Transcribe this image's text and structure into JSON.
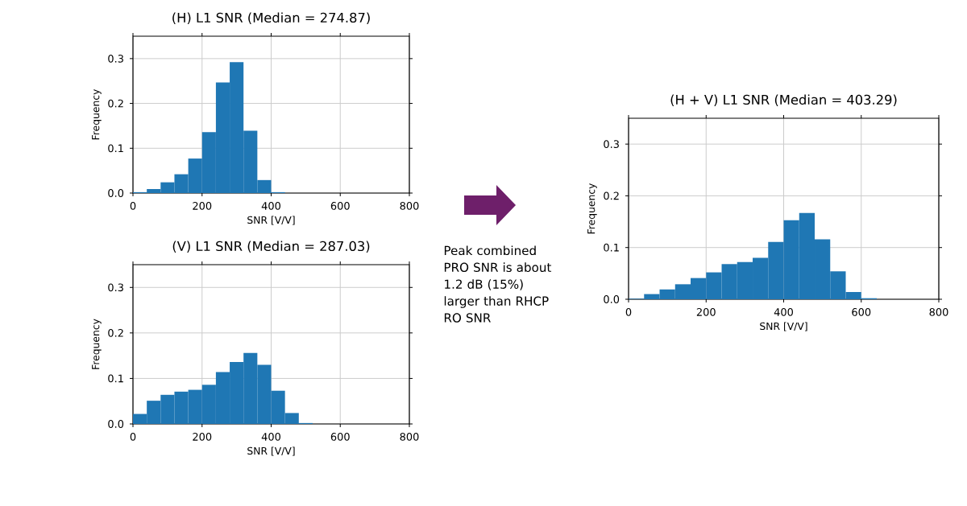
{
  "chart_data": [
    {
      "type": "histogram",
      "title": "(H) L1 SNR (Median = 274.87)",
      "xlabel": "SNR [V/V]",
      "ylabel": "Frequency",
      "bins": [
        0,
        40,
        80,
        120,
        160,
        200,
        240,
        280,
        320,
        360,
        400,
        440
      ],
      "values": [
        0.002,
        0.009,
        0.024,
        0.042,
        0.077,
        0.136,
        0.247,
        0.292,
        0.139,
        0.029,
        0.002
      ],
      "color": "#1f77b4",
      "xlim": [
        0,
        800
      ],
      "ylim": [
        0,
        0.35
      ],
      "xticks": [
        0,
        200,
        400,
        600,
        800
      ],
      "yticks": [
        {
          "value": 0,
          "label": "0.0"
        },
        {
          "value": 0.1,
          "label": "0.1"
        },
        {
          "value": 0.2,
          "label": "0.2"
        },
        {
          "value": 0.3,
          "label": "0.3"
        }
      ],
      "grid": true
    },
    {
      "type": "histogram",
      "title": "(V) L1 SNR (Median = 287.03)",
      "xlabel": "SNR [V/V]",
      "ylabel": "Frequency",
      "bins": [
        0,
        40,
        80,
        120,
        160,
        200,
        240,
        280,
        320,
        360,
        400,
        440,
        480,
        520
      ],
      "values": [
        0.022,
        0.051,
        0.064,
        0.071,
        0.075,
        0.086,
        0.114,
        0.136,
        0.156,
        0.13,
        0.073,
        0.024,
        0.002
      ],
      "color": "#1f77b4",
      "xlim": [
        0,
        800
      ],
      "ylim": [
        0,
        0.35
      ],
      "xticks": [
        0,
        200,
        400,
        600,
        800
      ],
      "yticks": [
        {
          "value": 0,
          "label": "0.0"
        },
        {
          "value": 0.1,
          "label": "0.1"
        },
        {
          "value": 0.2,
          "label": "0.2"
        },
        {
          "value": 0.3,
          "label": "0.3"
        }
      ],
      "grid": true
    },
    {
      "type": "histogram",
      "title": "(H + V) L1 SNR (Median = 403.29)",
      "xlabel": "SNR [V/V]",
      "ylabel": "Frequency",
      "bins": [
        0,
        40,
        80,
        120,
        160,
        200,
        240,
        280,
        320,
        360,
        400,
        440,
        480,
        520,
        560,
        600,
        640
      ],
      "values": [
        0.001,
        0.01,
        0.019,
        0.029,
        0.041,
        0.052,
        0.068,
        0.072,
        0.08,
        0.111,
        0.153,
        0.167,
        0.116,
        0.054,
        0.014,
        0.002
      ],
      "color": "#1f77b4",
      "xlim": [
        0,
        800
      ],
      "ylim": [
        0,
        0.35
      ],
      "xticks": [
        0,
        200,
        400,
        600,
        800
      ],
      "yticks": [
        {
          "value": 0,
          "label": "0.0"
        },
        {
          "value": 0.1,
          "label": "0.1"
        },
        {
          "value": 0.2,
          "label": "0.2"
        },
        {
          "value": 0.3,
          "label": "0.3"
        }
      ],
      "grid": true,
      "annotations": [
        "Peak combined PRO SNR is about 1.2 dB (15%) larger than RHCP RO SNR"
      ]
    }
  ]
}
